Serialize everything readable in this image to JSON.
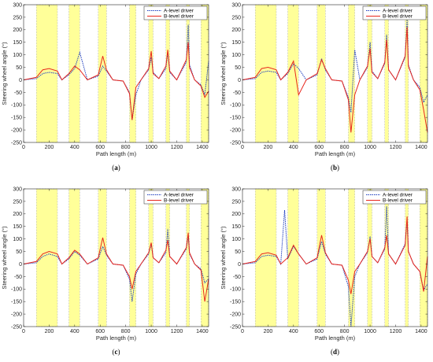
{
  "chart_data": [
    {
      "panel": "a",
      "type": "line",
      "label_open": "(",
      "label_letter": "a",
      "label_close": ")",
      "xlabel": "Path length (m)",
      "ylabel": "Steering wheel angle (°)",
      "xlim": [
        0,
        1450
      ],
      "ylim": [
        -250,
        300
      ],
      "xticks": [
        "0",
        "200",
        "400",
        "600",
        "800",
        "1000",
        "1200",
        "1400"
      ],
      "yticks": [
        "-250",
        "-200",
        "-150",
        "-100",
        "-50",
        "0",
        "50",
        "100",
        "150",
        "200",
        "250",
        "300"
      ],
      "bands": [
        [
          100,
          265
        ],
        [
          355,
          440
        ],
        [
          585,
          650
        ],
        [
          830,
          880
        ],
        [
          980,
          1015
        ],
        [
          1115,
          1145
        ],
        [
          1275,
          1300
        ],
        [
          1390,
          1450
        ]
      ],
      "legend": [
        "A-level driver",
        "B-level driver"
      ],
      "series": [
        {
          "name": "A-level driver",
          "color": "#1f3fbf",
          "style": "dotted",
          "x": [
            0,
            100,
            150,
            200,
            265,
            300,
            355,
            400,
            440,
            500,
            585,
            620,
            650,
            700,
            780,
            830,
            850,
            880,
            920,
            980,
            1000,
            1015,
            1060,
            1115,
            1130,
            1145,
            1200,
            1275,
            1290,
            1300,
            1340,
            1390,
            1420,
            1450
          ],
          "values": [
            0,
            5,
            25,
            30,
            25,
            0,
            20,
            45,
            110,
            0,
            15,
            55,
            35,
            0,
            -5,
            -50,
            -160,
            -60,
            0,
            40,
            90,
            30,
            5,
            45,
            110,
            30,
            0,
            70,
            220,
            60,
            0,
            -20,
            -60,
            75
          ]
        },
        {
          "name": "B-level driver",
          "color": "#e8261c",
          "style": "solid",
          "x": [
            0,
            100,
            150,
            200,
            265,
            300,
            355,
            400,
            440,
            500,
            585,
            620,
            650,
            700,
            780,
            830,
            850,
            880,
            920,
            980,
            1000,
            1015,
            1060,
            1115,
            1130,
            1145,
            1200,
            1275,
            1290,
            1300,
            1340,
            1390,
            1420,
            1450
          ],
          "values": [
            0,
            10,
            40,
            45,
            35,
            0,
            25,
            55,
            40,
            0,
            20,
            95,
            40,
            0,
            -5,
            -55,
            -160,
            -30,
            0,
            45,
            115,
            25,
            5,
            55,
            120,
            35,
            0,
            80,
            150,
            50,
            0,
            -25,
            -70,
            -45
          ]
        }
      ]
    },
    {
      "panel": "b",
      "type": "line",
      "label_open": "(",
      "label_letter": "b",
      "label_close": ")",
      "xlabel": "Path length (m)",
      "ylabel": "Steering wheel angle (°)",
      "xlim": [
        0,
        1450
      ],
      "ylim": [
        -250,
        300
      ],
      "xticks": [
        "0",
        "200",
        "400",
        "600",
        "800",
        "1000",
        "1200",
        "1400"
      ],
      "yticks": [
        "-250",
        "-200",
        "-150",
        "-100",
        "-50",
        "0",
        "50",
        "100",
        "150",
        "200",
        "250",
        "300"
      ],
      "bands": [
        [
          100,
          265
        ],
        [
          355,
          440
        ],
        [
          585,
          650
        ],
        [
          830,
          880
        ],
        [
          980,
          1015
        ],
        [
          1115,
          1145
        ],
        [
          1275,
          1300
        ],
        [
          1390,
          1450
        ]
      ],
      "legend": [
        "A-level driver",
        "B-level driver"
      ],
      "series": [
        {
          "name": "A-level driver",
          "color": "#1f3fbf",
          "style": "dotted",
          "x": [
            0,
            100,
            150,
            200,
            265,
            300,
            355,
            400,
            440,
            500,
            585,
            620,
            650,
            700,
            780,
            830,
            850,
            880,
            920,
            980,
            1000,
            1015,
            1060,
            1115,
            1130,
            1145,
            1200,
            1275,
            1290,
            1300,
            1340,
            1390,
            1420,
            1450
          ],
          "values": [
            0,
            5,
            30,
            35,
            30,
            0,
            25,
            65,
            45,
            0,
            20,
            85,
            40,
            0,
            -5,
            -70,
            -130,
            120,
            0,
            50,
            150,
            35,
            5,
            65,
            180,
            40,
            0,
            90,
            240,
            60,
            0,
            -30,
            -90,
            -60
          ]
        },
        {
          "name": "B-level driver",
          "color": "#e8261c",
          "style": "solid",
          "x": [
            0,
            100,
            150,
            200,
            265,
            300,
            355,
            400,
            440,
            500,
            585,
            620,
            650,
            700,
            780,
            830,
            850,
            880,
            920,
            980,
            1000,
            1015,
            1060,
            1115,
            1130,
            1145,
            1200,
            1275,
            1290,
            1300,
            1340,
            1390,
            1420,
            1450
          ],
          "values": [
            0,
            10,
            45,
            50,
            40,
            0,
            30,
            75,
            -60,
            0,
            25,
            80,
            45,
            0,
            -5,
            -80,
            -210,
            -60,
            0,
            55,
            125,
            30,
            5,
            70,
            160,
            40,
            0,
            95,
            210,
            55,
            0,
            -40,
            -120,
            -210
          ]
        }
      ]
    },
    {
      "panel": "c",
      "type": "line",
      "label_open": "(",
      "label_letter": "c",
      "label_close": ")",
      "xlabel": "Path length (m)",
      "ylabel": "Steering wheel angle (°)",
      "xlim": [
        0,
        1450
      ],
      "ylim": [
        -250,
        300
      ],
      "xticks": [
        "0",
        "200",
        "400",
        "600",
        "800",
        "1000",
        "1200",
        "1400"
      ],
      "yticks": [
        "-250",
        "-200",
        "-150",
        "-100",
        "-50",
        "0",
        "50",
        "100",
        "150",
        "200",
        "250",
        "300"
      ],
      "bands": [
        [
          100,
          265
        ],
        [
          355,
          440
        ],
        [
          585,
          650
        ],
        [
          830,
          880
        ],
        [
          980,
          1015
        ],
        [
          1115,
          1145
        ],
        [
          1275,
          1300
        ],
        [
          1390,
          1450
        ]
      ],
      "legend": [
        "A-level driver",
        "B-level driver"
      ],
      "series": [
        {
          "name": "A-level driver",
          "color": "#1f3fbf",
          "style": "dotted",
          "x": [
            0,
            100,
            150,
            200,
            265,
            300,
            355,
            400,
            440,
            500,
            585,
            620,
            650,
            700,
            780,
            830,
            850,
            880,
            920,
            980,
            1000,
            1015,
            1060,
            1115,
            1130,
            1145,
            1200,
            1275,
            1290,
            1300,
            1340,
            1390,
            1420,
            1450
          ],
          "values": [
            0,
            5,
            30,
            40,
            30,
            0,
            20,
            50,
            35,
            0,
            20,
            70,
            35,
            0,
            -5,
            -60,
            -150,
            -40,
            0,
            40,
            80,
            25,
            5,
            45,
            140,
            30,
            0,
            60,
            110,
            40,
            0,
            -20,
            -75,
            -60
          ]
        },
        {
          "name": "B-level driver",
          "color": "#e8261c",
          "style": "solid",
          "x": [
            0,
            100,
            150,
            200,
            265,
            300,
            355,
            400,
            440,
            500,
            585,
            620,
            650,
            700,
            780,
            830,
            850,
            880,
            920,
            980,
            1000,
            1015,
            1060,
            1115,
            1130,
            1145,
            1200,
            1275,
            1290,
            1300,
            1340,
            1390,
            1420,
            1450
          ],
          "values": [
            0,
            10,
            40,
            50,
            40,
            0,
            25,
            55,
            40,
            0,
            25,
            105,
            40,
            0,
            -5,
            -50,
            -100,
            -30,
            0,
            45,
            85,
            25,
            5,
            55,
            95,
            30,
            0,
            65,
            125,
            45,
            0,
            -25,
            -150,
            -60
          ]
        }
      ]
    },
    {
      "panel": "d",
      "type": "line",
      "label_open": "(",
      "label_letter": "d",
      "label_close": ")",
      "xlabel": "Path length (m)",
      "ylabel": "Steering wheel angle (°)",
      "xlim": [
        0,
        1450
      ],
      "ylim": [
        -250,
        300
      ],
      "xticks": [
        "0",
        "200",
        "400",
        "600",
        "800",
        "1000",
        "1200",
        "1400"
      ],
      "yticks": [
        "-250",
        "-200",
        "-150",
        "-100",
        "-50",
        "0",
        "50",
        "100",
        "150",
        "200",
        "250",
        "300"
      ],
      "bands": [
        [
          100,
          265
        ],
        [
          355,
          440
        ],
        [
          585,
          650
        ],
        [
          830,
          880
        ],
        [
          980,
          1015
        ],
        [
          1115,
          1145
        ],
        [
          1275,
          1300
        ],
        [
          1390,
          1450
        ]
      ],
      "legend": [
        "A-level driver",
        "B-level driver"
      ],
      "series": [
        {
          "name": "A-level driver",
          "color": "#1f3fbf",
          "style": "dotted",
          "x": [
            0,
            100,
            150,
            200,
            265,
            300,
            330,
            355,
            400,
            440,
            500,
            585,
            620,
            650,
            700,
            780,
            830,
            850,
            880,
            920,
            980,
            1000,
            1015,
            1060,
            1115,
            1130,
            1145,
            1200,
            1275,
            1290,
            1300,
            1340,
            1390,
            1420,
            1450
          ],
          "values": [
            0,
            5,
            30,
            35,
            30,
            0,
            215,
            20,
            70,
            40,
            0,
            20,
            90,
            40,
            0,
            -5,
            -90,
            -250,
            -50,
            0,
            45,
            110,
            30,
            5,
            60,
            230,
            40,
            0,
            80,
            170,
            50,
            0,
            -30,
            -105,
            -80
          ]
        },
        {
          "name": "B-level driver",
          "color": "#e8261c",
          "style": "solid",
          "x": [
            0,
            100,
            150,
            200,
            265,
            300,
            355,
            400,
            440,
            500,
            585,
            620,
            650,
            700,
            780,
            830,
            850,
            880,
            920,
            980,
            1000,
            1015,
            1060,
            1115,
            1130,
            1145,
            1200,
            1275,
            1290,
            1300,
            1340,
            1390,
            1420,
            1450
          ],
          "values": [
            0,
            10,
            40,
            45,
            35,
            0,
            25,
            75,
            40,
            0,
            25,
            115,
            45,
            0,
            -5,
            -65,
            -120,
            -30,
            0,
            50,
            100,
            30,
            5,
            65,
            115,
            40,
            0,
            75,
            190,
            50,
            0,
            -30,
            -110,
            30
          ]
        }
      ]
    }
  ]
}
